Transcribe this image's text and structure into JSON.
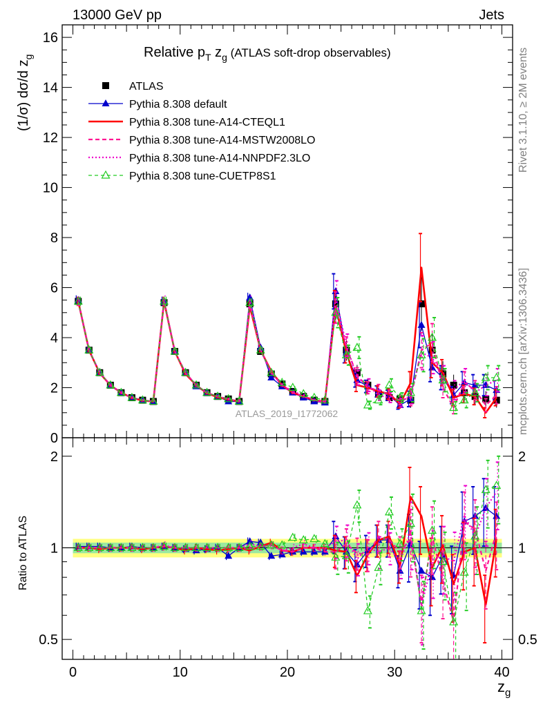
{
  "header": {
    "left": "13000 GeV pp",
    "right": "Jets"
  },
  "side_labels": {
    "rivet": "Rivet 3.1.10, ≥ 2M events",
    "mcplots": "mcplots.cern.ch [arXiv:1306.3436]"
  },
  "watermark": "ATLAS_2019_I1772062",
  "chart_data": [
    {
      "type": "line",
      "panel": "main",
      "title": "Relative pT zg (ATLAS soft-drop observables)",
      "title_parts": {
        "pre": "Relative p",
        "sub1": "T",
        "mid": " z",
        "sub2": "g",
        "post": " (ATLAS soft-drop observables)"
      },
      "ylabel": "(1/σ) dσ/d z_g",
      "ylabel_parts": {
        "pre": "(1/σ) dσ/d z",
        "sub": "g"
      },
      "xlim": [
        -1,
        41
      ],
      "ylim": [
        0,
        16.5
      ],
      "yticks": [
        0,
        2,
        4,
        6,
        8,
        10,
        12,
        14,
        16
      ],
      "grid": false,
      "legend_position": "top-left",
      "x": [
        0.5,
        1.5,
        2.5,
        3.5,
        4.5,
        5.5,
        6.5,
        7.5,
        8.5,
        9.5,
        10.5,
        11.5,
        12.5,
        13.5,
        14.5,
        15.5,
        16.5,
        17.5,
        18.5,
        19.5,
        20.5,
        21.5,
        22.5,
        23.5,
        24.5,
        25.5,
        26.5,
        27.5,
        28.5,
        29.5,
        30.5,
        31.5,
        32.5,
        33.5,
        34.5,
        35.5,
        36.5,
        37.5,
        38.5,
        39.5
      ],
      "series": [
        {
          "name": "ATLAS",
          "color": "#000000",
          "style": "marker-square",
          "values": [
            5.45,
            3.5,
            2.6,
            2.1,
            1.8,
            1.6,
            1.5,
            1.45,
            5.4,
            3.45,
            2.6,
            2.1,
            1.8,
            1.65,
            1.55,
            1.45,
            5.35,
            3.45,
            2.55,
            2.15,
            1.85,
            1.65,
            1.5,
            1.45,
            5.35,
            3.5,
            2.6,
            2.1,
            1.75,
            1.6,
            1.55,
            1.5,
            5.35,
            3.5,
            2.55,
            2.1,
            1.8,
            1.65,
            1.55,
            1.5
          ]
        },
        {
          "name": "Pythia 8.308 default",
          "color": "#0000cc",
          "style": "solid-triangle",
          "values": [
            5.5,
            3.52,
            2.62,
            2.1,
            1.8,
            1.62,
            1.5,
            1.45,
            5.45,
            3.45,
            2.58,
            2.05,
            1.78,
            1.65,
            1.45,
            1.45,
            5.6,
            3.6,
            2.4,
            2.05,
            1.8,
            1.6,
            1.45,
            1.4,
            5.85,
            3.4,
            2.3,
            2.05,
            1.85,
            1.7,
            1.3,
            1.55,
            4.5,
            2.8,
            2.4,
            1.7,
            2.2,
            2.1,
            2.1,
            1.9
          ]
        },
        {
          "name": "Pythia 8.308 tune-A14-CTEQL1",
          "color": "#ff0000",
          "style": "thick-solid",
          "values": [
            5.45,
            3.5,
            2.58,
            2.1,
            1.8,
            1.6,
            1.48,
            1.45,
            5.45,
            3.45,
            2.55,
            2.1,
            1.78,
            1.62,
            1.53,
            1.45,
            5.25,
            3.5,
            2.65,
            2.1,
            1.8,
            1.65,
            1.5,
            1.45,
            5.25,
            3.4,
            2.1,
            2.0,
            1.85,
            1.75,
            1.35,
            2.2,
            6.8,
            3.0,
            2.6,
            1.6,
            1.75,
            1.65,
            1.0,
            1.6
          ]
        },
        {
          "name": "Pythia 8.308 tune-A14-MSTW2008LO",
          "color": "#ff1493",
          "style": "dashed",
          "values": [
            5.45,
            3.5,
            2.6,
            2.1,
            1.8,
            1.6,
            1.5,
            1.45,
            5.45,
            3.45,
            2.6,
            2.1,
            1.8,
            1.65,
            1.55,
            1.45,
            5.3,
            3.5,
            2.6,
            2.1,
            1.8,
            1.65,
            1.5,
            1.4,
            5.2,
            3.6,
            2.5,
            2.0,
            1.9,
            1.7,
            1.5,
            1.6,
            3.5,
            3.8,
            2.0,
            1.2,
            2.2,
            1.9,
            1.3,
            1.7
          ]
        },
        {
          "name": "Pythia 8.308 tune-A14-NNPDF2.3LO",
          "color": "#ee00cc",
          "style": "dotted",
          "values": [
            5.45,
            3.5,
            2.6,
            2.1,
            1.8,
            1.6,
            1.5,
            1.45,
            5.5,
            3.45,
            2.6,
            2.1,
            1.8,
            1.65,
            1.55,
            1.45,
            5.5,
            3.5,
            2.6,
            2.1,
            1.85,
            1.7,
            1.5,
            1.45,
            5.6,
            3.7,
            2.4,
            2.1,
            1.7,
            1.6,
            1.4,
            1.7,
            3.4,
            3.2,
            2.4,
            1.9,
            2.3,
            1.8,
            2.1,
            2.3
          ]
        },
        {
          "name": "Pythia 8.308 tune-CUETP8S1",
          "color": "#22cc22",
          "style": "dashed-open-triangle",
          "values": [
            5.45,
            3.5,
            2.6,
            2.1,
            1.8,
            1.6,
            1.5,
            1.45,
            5.45,
            3.45,
            2.6,
            2.1,
            1.8,
            1.65,
            1.55,
            1.45,
            5.4,
            3.5,
            2.6,
            2.2,
            2.0,
            1.75,
            1.6,
            1.5,
            5.0,
            3.3,
            3.6,
            1.3,
            1.5,
            2.1,
            1.6,
            1.8,
            3.3,
            4.0,
            2.3,
            1.2,
            1.5,
            1.8,
            2.4,
            2.4
          ]
        }
      ]
    },
    {
      "type": "line",
      "panel": "ratio",
      "ylabel": "Ratio to ATLAS",
      "xlabel": "z_g",
      "xlabel_parts": {
        "pre": "z",
        "sub": "g"
      },
      "xlim": [
        -1,
        41
      ],
      "ylim": [
        0.43,
        2.3
      ],
      "log_y": true,
      "xticks": [
        0,
        10,
        20,
        30,
        40
      ],
      "yticks": [
        0.5,
        1,
        2
      ],
      "band": {
        "inner_halfwidth": 0.04,
        "outer_halfwidth": 0.07,
        "inner_color": "#9be8a0",
        "outer_color": "#ffff80"
      },
      "series": [
        {
          "name": "Pythia 8.308 default",
          "values": [
            1.01,
            1.01,
            1.01,
            1.0,
            1.0,
            1.01,
            1.0,
            1.0,
            1.01,
            1.0,
            0.99,
            0.98,
            0.99,
            1.0,
            0.94,
            1.0,
            1.05,
            1.04,
            0.94,
            0.95,
            0.97,
            0.97,
            0.97,
            0.97,
            1.09,
            0.97,
            0.88,
            0.98,
            1.06,
            1.06,
            0.84,
            1.03,
            0.84,
            0.8,
            0.94,
            0.81,
            1.22,
            1.27,
            1.35,
            1.27
          ]
        },
        {
          "name": "Pythia 8.308 tune-A14-CTEQL1",
          "values": [
            1.0,
            1.0,
            0.99,
            1.0,
            1.0,
            1.0,
            0.99,
            1.0,
            1.01,
            1.0,
            0.98,
            1.0,
            0.99,
            0.98,
            0.99,
            1.0,
            0.98,
            1.01,
            1.04,
            0.98,
            0.97,
            1.0,
            1.0,
            1.0,
            0.98,
            0.97,
            0.81,
            0.95,
            1.06,
            1.09,
            0.87,
            1.47,
            1.27,
            0.86,
            1.02,
            0.76,
            0.97,
            1.0,
            0.65,
            1.07
          ]
        },
        {
          "name": "Pythia 8.308 tune-A14-MSTW2008LO",
          "values": [
            1.0,
            1.0,
            1.0,
            1.0,
            1.0,
            1.0,
            1.0,
            1.0,
            1.01,
            1.0,
            1.0,
            1.0,
            1.0,
            1.0,
            1.0,
            1.0,
            0.99,
            1.01,
            1.02,
            0.98,
            0.97,
            1.0,
            1.0,
            0.97,
            0.97,
            1.03,
            0.96,
            0.95,
            1.09,
            1.06,
            0.97,
            1.07,
            0.65,
            1.09,
            0.78,
            0.57,
            1.22,
            1.15,
            0.84,
            1.13
          ]
        },
        {
          "name": "Pythia 8.308 tune-A14-NNPDF2.3LO",
          "values": [
            1.0,
            1.0,
            1.0,
            1.0,
            1.0,
            1.0,
            1.0,
            1.0,
            1.02,
            1.0,
            1.0,
            1.0,
            1.0,
            1.0,
            1.0,
            1.0,
            1.03,
            1.01,
            1.02,
            0.98,
            1.0,
            1.03,
            1.0,
            1.0,
            1.05,
            1.06,
            0.92,
            1.0,
            0.97,
            1.0,
            0.9,
            1.13,
            0.64,
            0.91,
            0.94,
            0.9,
            1.28,
            1.09,
            1.35,
            1.53
          ]
        },
        {
          "name": "Pythia 8.308 tune-CUETP8S1",
          "values": [
            1.0,
            1.0,
            1.0,
            1.0,
            1.0,
            1.0,
            1.0,
            1.0,
            1.01,
            1.0,
            1.0,
            1.0,
            1.0,
            1.0,
            1.0,
            1.0,
            1.01,
            1.01,
            1.02,
            1.02,
            1.08,
            1.06,
            1.07,
            1.03,
            0.93,
            0.94,
            1.38,
            0.62,
            0.86,
            1.31,
            1.03,
            1.2,
            0.62,
            1.14,
            0.9,
            0.57,
            0.83,
            1.09,
            1.55,
            1.6
          ]
        }
      ]
    }
  ]
}
